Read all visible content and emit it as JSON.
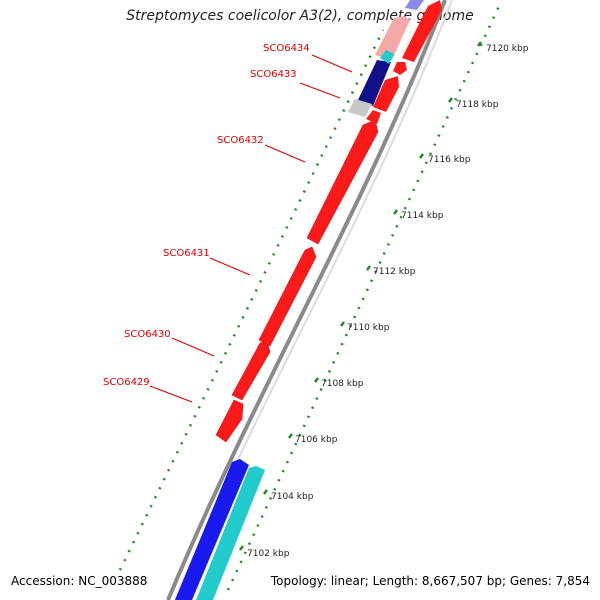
{
  "title": "Streptomyces coelicolor A3(2), complete genome",
  "footer": {
    "accession": "Accession: NC_003888",
    "topology": "Topology: linear; Length: 8,667,507 bp; Genes: 7,854"
  },
  "colors": {
    "forward_gene": "#ff1a1a",
    "reverse_gene": "#1a1aee",
    "dark_gene": "#101088",
    "cyan_gene": "#22cccc",
    "gray_gene": "#c8c8c8",
    "tick_green": "#1f8a1f",
    "label_red": "#dd0000",
    "backbone": "#8a8a8a"
  },
  "scale_labels": [
    "7102 kbp",
    "7104 kbp",
    "7106 kbp",
    "7108 kbp",
    "7110 kbp",
    "7112 kbp",
    "7114 kbp",
    "7116 kbp",
    "7118 kbp",
    "7120 kbp"
  ],
  "gene_labels": [
    "SCO6429",
    "SCO6430",
    "SCO6431",
    "SCO6432",
    "SCO6433",
    "SCO6434"
  ]
}
